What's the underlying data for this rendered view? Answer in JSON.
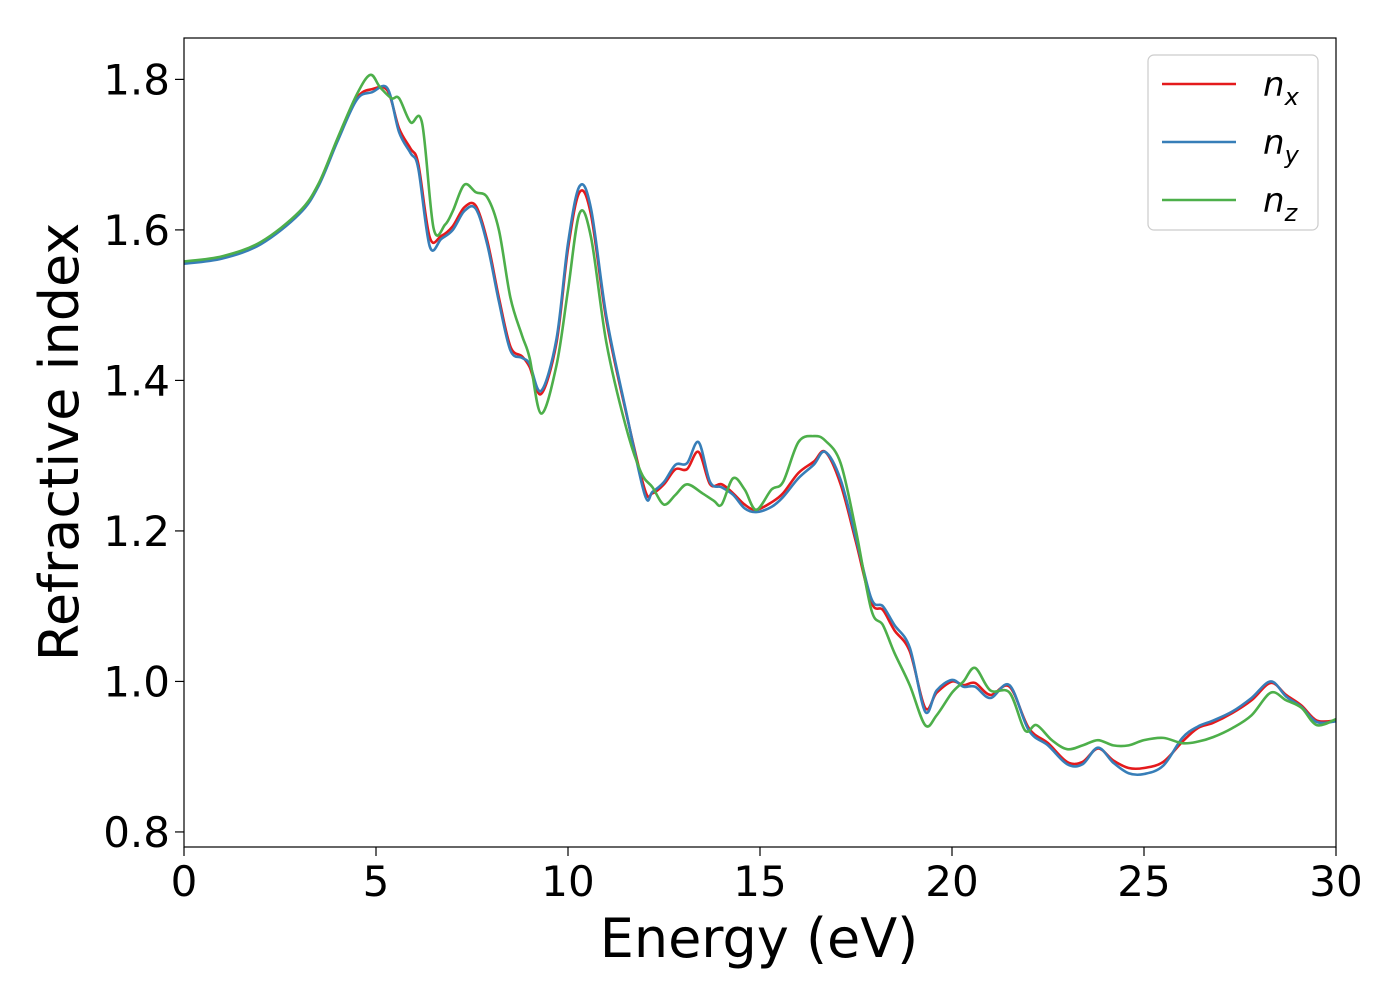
{
  "chart_data": {
    "type": "line",
    "xlabel": "Energy (eV)",
    "ylabel": "Refractive index",
    "xlim": [
      0,
      30
    ],
    "ylim": [
      0.78,
      1.855
    ],
    "xticks": [
      0,
      5,
      10,
      15,
      20,
      25,
      30
    ],
    "xtick_labels": [
      "0",
      "5",
      "10",
      "15",
      "20",
      "25",
      "30"
    ],
    "yticks": [
      0.8,
      1.0,
      1.2,
      1.4,
      1.6,
      1.8
    ],
    "ytick_labels": [
      "0.8",
      "1.0",
      "1.2",
      "1.4",
      "1.6",
      "1.8"
    ],
    "grid": false,
    "legend_position": "top-right",
    "series": [
      {
        "name": "n",
        "subscript": "x",
        "color": "#e41a1c",
        "x": [
          0,
          1,
          2,
          3,
          3.5,
          4,
          4.5,
          4.9,
          5.3,
          5.6,
          5.9,
          6.1,
          6.4,
          6.7,
          7.0,
          7.3,
          7.6,
          7.9,
          8.2,
          8.5,
          8.8,
          9.0,
          9.3,
          9.7,
          10.0,
          10.3,
          10.6,
          11.0,
          11.5,
          12.0,
          12.2,
          12.5,
          12.8,
          13.1,
          13.4,
          13.7,
          14.0,
          14.3,
          14.6,
          14.9,
          15.3,
          15.6,
          16.0,
          16.4,
          16.7,
          17.1,
          17.5,
          17.9,
          18.2,
          18.5,
          18.9,
          19.3,
          19.6,
          20.0,
          20.3,
          20.6,
          21.0,
          21.5,
          22.0,
          22.5,
          23.0,
          23.4,
          23.8,
          24.2,
          24.6,
          25.0,
          25.5,
          26.0,
          26.4,
          26.8,
          27.3,
          27.8,
          28.3,
          28.7,
          29.1,
          29.5,
          30.0
        ],
        "y": [
          1.557,
          1.564,
          1.583,
          1.623,
          1.66,
          1.72,
          1.775,
          1.787,
          1.785,
          1.735,
          1.708,
          1.688,
          1.59,
          1.592,
          1.605,
          1.63,
          1.632,
          1.585,
          1.51,
          1.445,
          1.432,
          1.418,
          1.382,
          1.45,
          1.575,
          1.65,
          1.62,
          1.48,
          1.36,
          1.255,
          1.25,
          1.262,
          1.282,
          1.282,
          1.305,
          1.262,
          1.262,
          1.25,
          1.235,
          1.228,
          1.238,
          1.25,
          1.277,
          1.292,
          1.305,
          1.262,
          1.185,
          1.105,
          1.095,
          1.068,
          1.04,
          0.965,
          0.985,
          1.0,
          0.995,
          0.998,
          0.982,
          0.993,
          0.938,
          0.918,
          0.893,
          0.893,
          0.911,
          0.895,
          0.885,
          0.885,
          0.893,
          0.92,
          0.938,
          0.945,
          0.958,
          0.975,
          0.998,
          0.982,
          0.968,
          0.948,
          0.948
        ]
      },
      {
        "name": "n",
        "subscript": "y",
        "color": "#377eb8",
        "x": [
          0,
          1,
          2,
          3,
          3.5,
          4,
          4.5,
          4.9,
          5.3,
          5.6,
          5.9,
          6.1,
          6.4,
          6.7,
          7.0,
          7.3,
          7.6,
          7.9,
          8.2,
          8.5,
          8.8,
          9.0,
          9.3,
          9.7,
          10.0,
          10.3,
          10.6,
          11.0,
          11.5,
          12.0,
          12.2,
          12.5,
          12.8,
          13.1,
          13.4,
          13.7,
          14.0,
          14.3,
          14.6,
          14.9,
          15.3,
          15.6,
          16.0,
          16.4,
          16.7,
          17.1,
          17.5,
          17.9,
          18.2,
          18.5,
          18.9,
          19.3,
          19.6,
          20.0,
          20.3,
          20.6,
          21.0,
          21.5,
          22.0,
          22.5,
          23.0,
          23.4,
          23.8,
          24.2,
          24.6,
          25.0,
          25.5,
          26.0,
          26.4,
          26.8,
          27.3,
          27.8,
          28.3,
          28.7,
          29.1,
          29.5,
          30.0
        ],
        "y": [
          1.555,
          1.562,
          1.581,
          1.621,
          1.658,
          1.718,
          1.773,
          1.783,
          1.788,
          1.73,
          1.702,
          1.682,
          1.578,
          1.588,
          1.6,
          1.625,
          1.628,
          1.58,
          1.505,
          1.44,
          1.43,
          1.422,
          1.386,
          1.455,
          1.582,
          1.658,
          1.628,
          1.485,
          1.362,
          1.248,
          1.252,
          1.265,
          1.288,
          1.29,
          1.318,
          1.265,
          1.258,
          1.248,
          1.23,
          1.225,
          1.232,
          1.245,
          1.27,
          1.288,
          1.305,
          1.268,
          1.19,
          1.11,
          1.1,
          1.075,
          1.045,
          0.96,
          0.988,
          1.002,
          0.993,
          0.993,
          0.978,
          0.995,
          0.935,
          0.915,
          0.89,
          0.89,
          0.912,
          0.892,
          0.878,
          0.877,
          0.888,
          0.925,
          0.94,
          0.948,
          0.96,
          0.978,
          1.0,
          0.98,
          0.966,
          0.946,
          0.947
        ]
      },
      {
        "name": "n",
        "subscript": "z",
        "color": "#4daf4a",
        "x": [
          0,
          1,
          2,
          3,
          3.5,
          4,
          4.5,
          4.85,
          5.1,
          5.4,
          5.6,
          5.9,
          6.2,
          6.5,
          6.8,
          7.0,
          7.3,
          7.6,
          7.9,
          8.2,
          8.5,
          8.8,
          9.0,
          9.3,
          9.7,
          10.0,
          10.3,
          10.6,
          11.0,
          11.5,
          11.9,
          12.2,
          12.5,
          12.8,
          13.1,
          13.5,
          13.8,
          14.0,
          14.3,
          14.6,
          14.9,
          15.3,
          15.6,
          16.0,
          16.4,
          16.7,
          17.1,
          17.5,
          17.9,
          18.2,
          18.5,
          18.9,
          19.3,
          19.6,
          20.0,
          20.3,
          20.6,
          21.0,
          21.5,
          21.9,
          22.2,
          22.6,
          23.0,
          23.4,
          23.8,
          24.2,
          24.6,
          25.0,
          25.5,
          26.0,
          26.4,
          26.8,
          27.3,
          27.8,
          28.3,
          28.7,
          29.1,
          29.5,
          30.0
        ],
        "y": [
          1.558,
          1.565,
          1.584,
          1.624,
          1.661,
          1.722,
          1.78,
          1.806,
          1.79,
          1.775,
          1.775,
          1.743,
          1.742,
          1.602,
          1.607,
          1.625,
          1.66,
          1.65,
          1.643,
          1.6,
          1.51,
          1.46,
          1.43,
          1.356,
          1.42,
          1.52,
          1.622,
          1.59,
          1.45,
          1.34,
          1.278,
          1.258,
          1.235,
          1.248,
          1.262,
          1.25,
          1.24,
          1.235,
          1.27,
          1.255,
          1.228,
          1.255,
          1.265,
          1.318,
          1.326,
          1.32,
          1.29,
          1.2,
          1.095,
          1.075,
          1.038,
          0.995,
          0.942,
          0.955,
          0.985,
          1.0,
          1.018,
          0.988,
          0.985,
          0.935,
          0.942,
          0.922,
          0.91,
          0.915,
          0.922,
          0.915,
          0.915,
          0.922,
          0.925,
          0.918,
          0.92,
          0.926,
          0.938,
          0.955,
          0.985,
          0.975,
          0.965,
          0.942,
          0.95
        ]
      }
    ]
  }
}
